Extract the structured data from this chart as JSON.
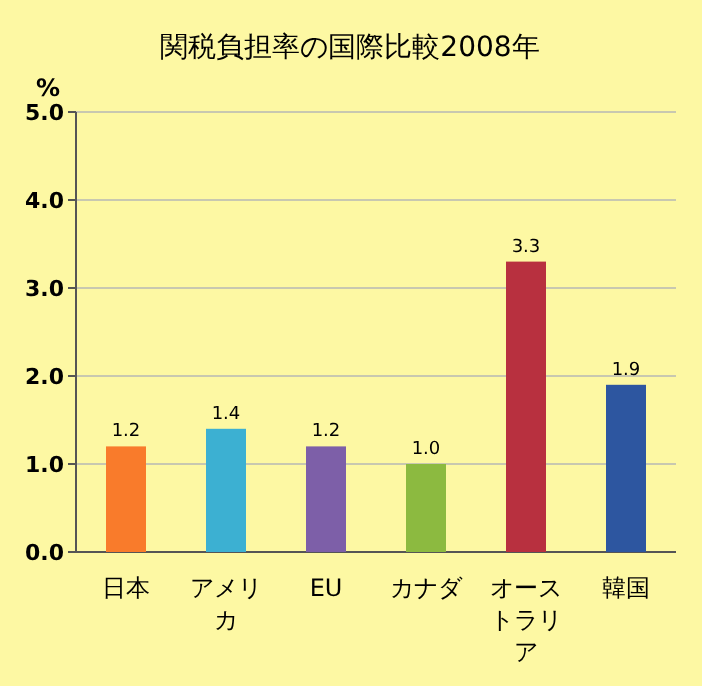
{
  "chart_data": {
    "type": "bar",
    "title": "関税負担率の国際比較2008年",
    "ylabel": "%",
    "categories": [
      "日本",
      "アメリカ",
      "EU",
      "カナダ",
      "オーストラリア",
      "韓国"
    ],
    "values": [
      1.2,
      1.4,
      1.2,
      1.0,
      3.3,
      1.9
    ],
    "colors": [
      "#f97b2b",
      "#3cb0d2",
      "#7d5fa8",
      "#8cba40",
      "#b8303f",
      "#2d56a0"
    ],
    "value_labels": [
      "1.2",
      "1.4",
      "1.2",
      "1.0",
      "3.3",
      "1.9"
    ],
    "ylim": [
      0,
      5
    ],
    "yticks": [
      {
        "value": 0,
        "label": "0.0"
      },
      {
        "value": 1,
        "label": "1.0"
      },
      {
        "value": 2,
        "label": "2.0"
      },
      {
        "value": 3,
        "label": "3.0"
      },
      {
        "value": 4,
        "label": "4.0"
      },
      {
        "value": 5,
        "label": "5.0"
      }
    ],
    "grid": "y"
  }
}
